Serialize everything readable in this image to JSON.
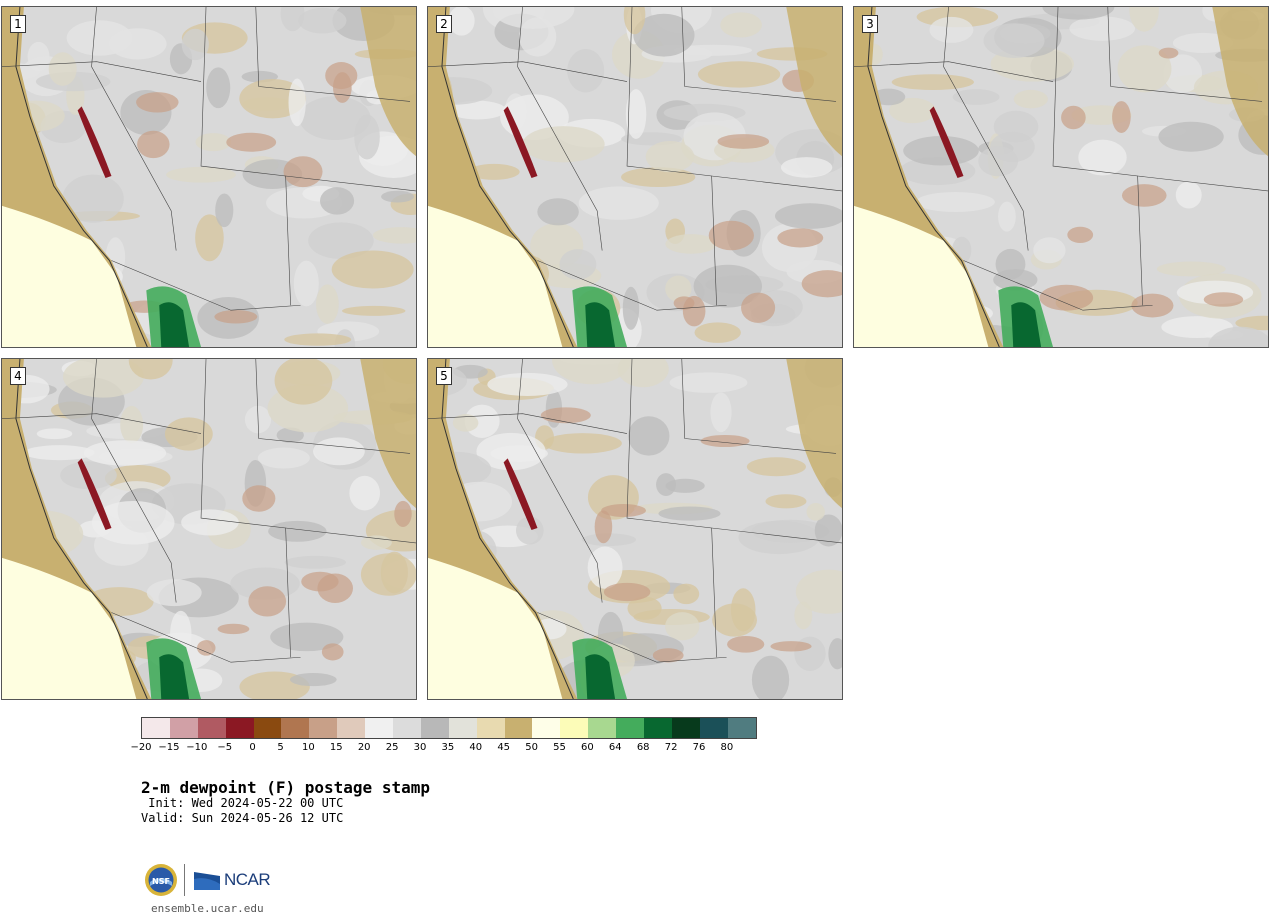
{
  "panels": [
    {
      "number": "1"
    },
    {
      "number": "2"
    },
    {
      "number": "3"
    },
    {
      "number": "4"
    },
    {
      "number": "5"
    }
  ],
  "colorbar": {
    "colors": [
      "#f4e8ea",
      "#d1a0a6",
      "#b05a62",
      "#8b1823",
      "#8a4a10",
      "#b07650",
      "#c8a088",
      "#e0cabb",
      "#f0f0f0",
      "#dcdcdc",
      "#b8b8b8",
      "#e2e2da",
      "#e8dab0",
      "#c8b070",
      "#fefee8",
      "#fcfcb8",
      "#a8d890",
      "#44ac5c",
      "#086830",
      "#073a1c",
      "#1b5058",
      "#507c80"
    ],
    "tick_labels": [
      "−20",
      "−15",
      "−10",
      "−5",
      "0",
      "5",
      "10",
      "15",
      "20",
      "25",
      "30",
      "35",
      "40",
      "45",
      "50",
      "55",
      "60",
      "64",
      "68",
      "72",
      "76",
      "80"
    ]
  },
  "title": "2-m dewpoint (F) postage stamp",
  "init": " Init: Wed 2024-05-22 00 UTC",
  "valid": "Valid: Sun 2024-05-26 12 UTC",
  "logo": {
    "agency": "NCAR",
    "badge": "NSF"
  },
  "footer": "ensemble.ucar.edu"
}
